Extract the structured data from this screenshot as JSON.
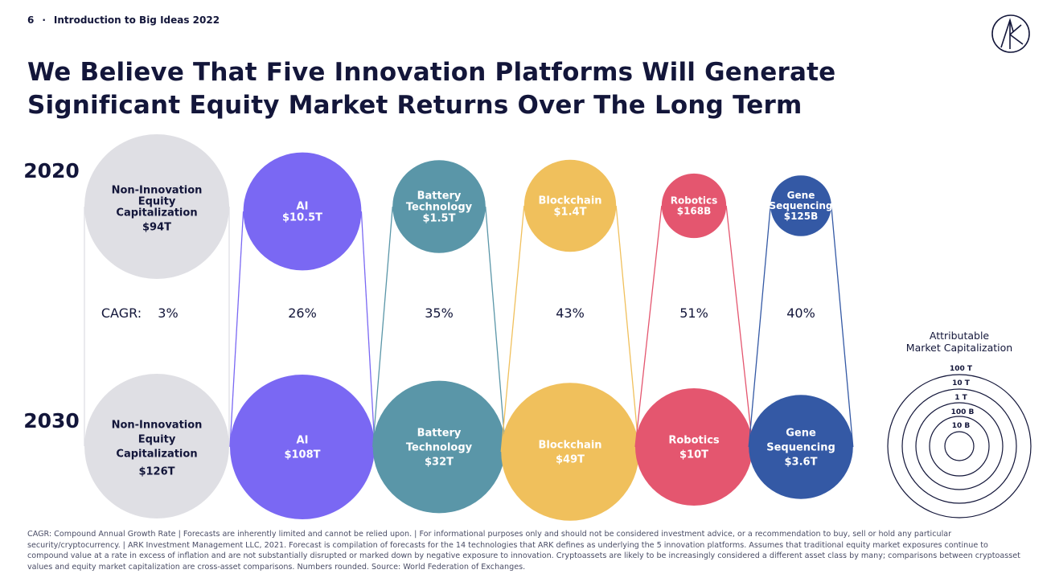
{
  "header": {
    "page_number": "6",
    "section": "Introduction to Big Ideas 2022",
    "title_line1": "We Believe That Five Innovation Platforms Will Generate",
    "title_line2": "Significant Equity Market Returns Over The Long Term"
  },
  "colors": {
    "non_innovation": "#dfdfe4",
    "ai": "#7a68f3",
    "battery": "#5a96a8",
    "blockchain": "#f0c05c",
    "robotics": "#e4566f",
    "gene": "#3459a5",
    "text_dark": "#13163a"
  },
  "chart_data": {
    "type": "bubble",
    "year_labels": [
      "2020",
      "2030"
    ],
    "cagr_label": "CAGR:",
    "categories": [
      {
        "name_lines": [
          "Non-Innovation",
          "Equity",
          "Capitalization"
        ],
        "value_2020": "$94T",
        "value_2030": "$126T",
        "value_2020_num": 94,
        "value_2030_num": 126,
        "cagr": "3%",
        "unit": "trillion USD",
        "color_key": "non_innovation",
        "text_color": "#13163a"
      },
      {
        "name_lines": [
          "AI"
        ],
        "value_2020": "$10.5T",
        "value_2030": "$108T",
        "value_2020_num": 10.5,
        "value_2030_num": 108,
        "cagr": "26%",
        "unit": "trillion USD",
        "color_key": "ai",
        "text_color": "#ffffff"
      },
      {
        "name_lines": [
          "Battery",
          "Technology"
        ],
        "value_2020": "$1.5T",
        "value_2030": "$32T",
        "value_2020_num": 1.5,
        "value_2030_num": 32,
        "cagr": "35%",
        "unit": "trillion USD",
        "color_key": "battery",
        "text_color": "#ffffff"
      },
      {
        "name_lines": [
          "Blockchain"
        ],
        "value_2020": "$1.4T",
        "value_2030": "$49T",
        "value_2020_num": 1.4,
        "value_2030_num": 49,
        "cagr": "43%",
        "unit": "trillion USD",
        "color_key": "blockchain",
        "text_color": "#ffffff"
      },
      {
        "name_lines": [
          "Robotics"
        ],
        "value_2020": "$168B",
        "value_2030": "$10T",
        "value_2020_num": 0.168,
        "value_2030_num": 10,
        "cagr": "51%",
        "unit": "trillion USD",
        "color_key": "robotics",
        "text_color": "#ffffff"
      },
      {
        "name_lines": [
          "Gene",
          "Sequencing"
        ],
        "value_2020": "$125B",
        "value_2030": "$3.6T",
        "value_2020_num": 0.125,
        "value_2030_num": 3.6,
        "cagr": "40%",
        "unit": "trillion USD",
        "color_key": "gene",
        "text_color": "#ffffff"
      }
    ],
    "legend": {
      "title_lines": [
        "Attributable",
        "Market Capitalization"
      ],
      "rings": [
        "100 T",
        "10 T",
        "1 T",
        "100 B",
        "10 B"
      ]
    }
  },
  "footer": {
    "text": "CAGR: Compound Annual Growth Rate  |  Forecasts are inherently limited and cannot be relied upon.  |  For informational purposes only and should not be considered investment advice, or a recommendation to buy, sell or hold any particular security/cryptocurrency.  |  ARK Investment Management LLC, 2021. Forecast is compilation of forecasts for the 14 technologies that ARK defines as underlying the 5 innovation platforms. Assumes that traditional equity market exposures continue to compound value at a rate in excess of inflation and are not substantially disrupted or marked down by negative exposure to innovation. Cryptoassets are likely to be increasingly considered a different asset class by many; comparisons between cryptoasset values and equity market capitalization are cross-asset comparisons. Numbers rounded. Source: World Federation of Exchanges."
  }
}
